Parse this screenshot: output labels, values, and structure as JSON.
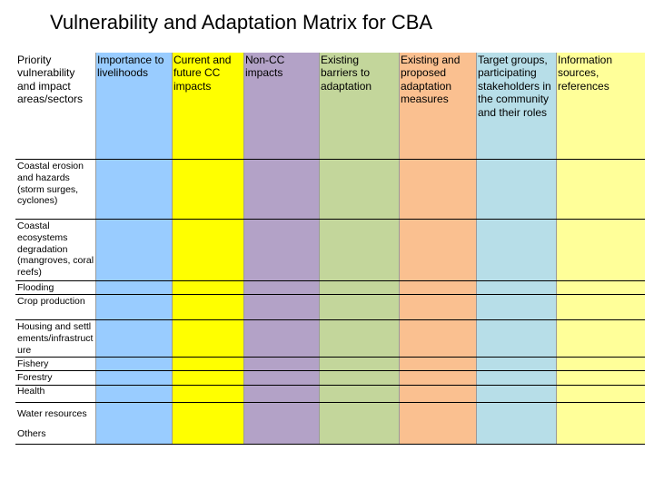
{
  "title": "Vulnerability and Adaptation Matrix for CBA",
  "columns": [
    {
      "label": "Priority vulnerability and impact areas/sectors",
      "color": "#ffffff"
    },
    {
      "label": "Importance to livelihoods",
      "color": "#99ccff"
    },
    {
      "label": "Current and future CC impacts",
      "color": "#ffff00"
    },
    {
      "label": "Non-CC impacts",
      "color": "#b3a2c7"
    },
    {
      "label": "Existing barriers to adaptation",
      "color": "#c3d69b"
    },
    {
      "label": "Existing and proposed adaptation measures",
      "color": "#fac090"
    },
    {
      "label": "Target groups, participating stakeholders in the community and their roles",
      "color": "#b7dee8"
    },
    {
      "label": "Information sources, references",
      "color": "#ffff99"
    }
  ],
  "rows": [
    {
      "label": "Coastal erosion and hazards (storm surges, cyclones)"
    },
    {
      "label": "Coastal ecosystems degradation (mangroves, coral reefs)"
    },
    {
      "label": "Flooding"
    },
    {
      "label": "Crop production"
    },
    {
      "label": "Housing and settlements/infrastructure"
    },
    {
      "label": "Fishery"
    },
    {
      "label": "Forestry"
    },
    {
      "label": "Health"
    },
    {
      "label": "Water resources"
    },
    {
      "label": "Others"
    }
  ]
}
